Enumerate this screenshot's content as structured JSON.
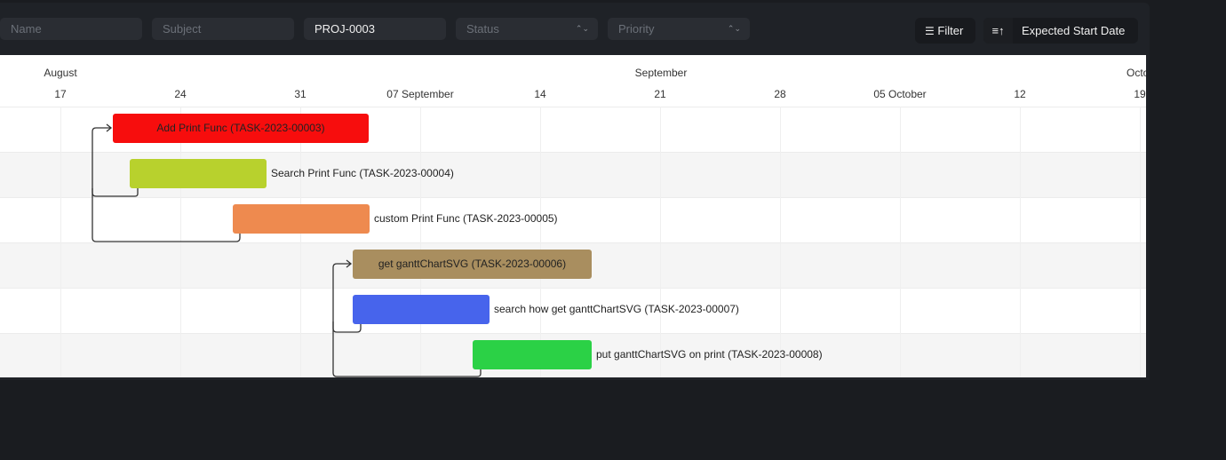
{
  "filters": {
    "name_placeholder": "Name",
    "subject_placeholder": "Subject",
    "project_value": "PROJ-0003",
    "status_placeholder": "Status",
    "priority_placeholder": "Priority"
  },
  "toolbar": {
    "filter_label": "Filter",
    "sort_label": "Expected Start Date"
  },
  "gantt": {
    "months": [
      {
        "label": "August"
      },
      {
        "label": "September"
      },
      {
        "label": "Octol"
      }
    ],
    "ticks": [
      "17",
      "24",
      "31",
      "07 September",
      "14",
      "21",
      "28",
      "05 October",
      "12",
      "19"
    ],
    "tasks": [
      {
        "label": "Add Print Func (TASK-2023-00003)",
        "color": "#f70d0d",
        "inside": true
      },
      {
        "label": "Search Print Func (TASK-2023-00004)",
        "color": "#b8d12d",
        "inside": false
      },
      {
        "label": "custom Print Func (TASK-2023-00005)",
        "color": "#ee8a4f",
        "inside": false
      },
      {
        "label": "get ganttChartSVG (TASK-2023-00006)",
        "color": "#a98e5f",
        "inside": true
      },
      {
        "label": "search how get ganttChartSVG (TASK-2023-00007)",
        "color": "#4764ec",
        "inside": false
      },
      {
        "label": "put ganttChartSVG on print (TASK-2023-00008)",
        "color": "#2bd146",
        "inside": false
      }
    ]
  }
}
